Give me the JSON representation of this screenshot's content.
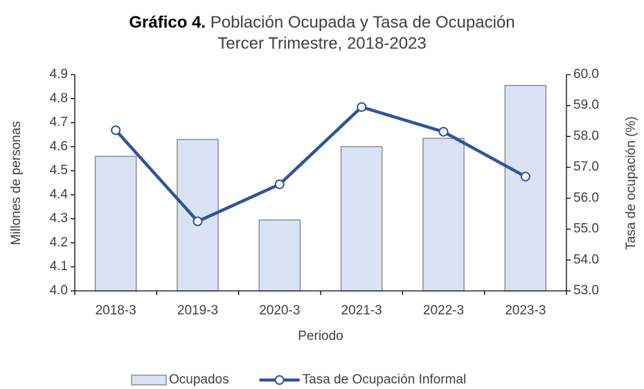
{
  "chart_data": {
    "type": "bar_line",
    "title_label": "Gráfico 4.",
    "title": "Población Ocupada y Tasa de Ocupación",
    "subtitle": "Tercer Trimestre, 2018-2023",
    "x_label": "Periodo",
    "y_label": "Millones de personas",
    "y2_label": "Tasa de ocupación (%)",
    "categories": [
      "2018-3",
      "2019-3",
      "2020-3",
      "2021-3",
      "2022-3",
      "2023-3"
    ],
    "series": [
      {
        "name": "Ocupados",
        "type": "bar",
        "color": "#dae3f3",
        "values": [
          4.56,
          4.63,
          4.295,
          4.6,
          4.635,
          4.855
        ]
      },
      {
        "name": "Tasa de Ocupación Informal",
        "type": "line",
        "axis": "y2",
        "color": "#2f5597",
        "values": [
          58.2,
          55.25,
          56.45,
          58.95,
          58.15,
          56.7
        ]
      }
    ],
    "ylim": [
      4.0,
      4.9
    ],
    "yticks": [
      {
        "value": 4,
        "label": "4.0"
      },
      4.1,
      4.2,
      4.3,
      4.4,
      4.5,
      4.6,
      4.7,
      4.8,
      4.9
    ],
    "y2lim": [
      53,
      60
    ],
    "y2ticks": [
      {
        "value": 53,
        "label": "53.0"
      },
      {
        "value": 54,
        "label": "54.0"
      },
      {
        "value": 55,
        "label": "55.0"
      },
      {
        "value": 56,
        "label": "56.0"
      },
      {
        "value": 57,
        "label": "57.0"
      },
      {
        "value": 58,
        "label": "58.0"
      },
      {
        "value": 59,
        "label": "59.0"
      },
      {
        "value": 60,
        "label": "60.0"
      }
    ],
    "grid": false,
    "legend": "bottom"
  }
}
